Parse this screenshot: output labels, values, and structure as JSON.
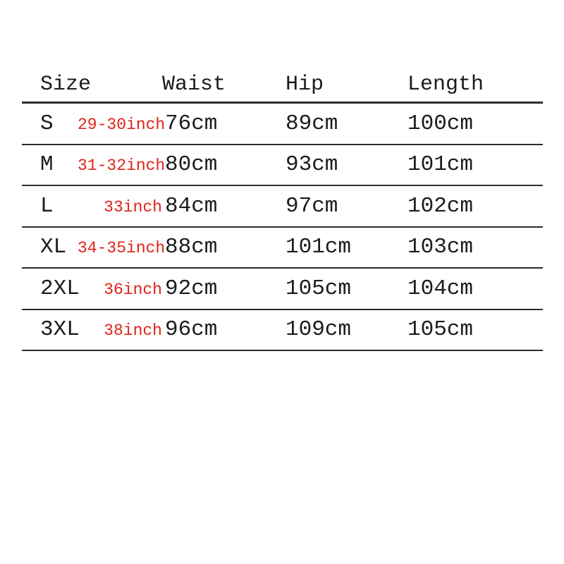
{
  "colors": {
    "accent_red": "#df2318",
    "text": "#1c1c1c",
    "rule": "#2d2d2d",
    "background": "#ffffff"
  },
  "chart_data": {
    "type": "table",
    "title": "",
    "columns": [
      "Size",
      "Waist",
      "Hip",
      "Length"
    ],
    "waist_units": [
      "inch",
      "cm"
    ],
    "rows": [
      {
        "size": "S",
        "waist_inch": "29-30inch",
        "waist_cm": "76cm",
        "hip": "89cm",
        "length": "100cm"
      },
      {
        "size": "M",
        "waist_inch": "31-32inch",
        "waist_cm": "80cm",
        "hip": "93cm",
        "length": "101cm"
      },
      {
        "size": "L",
        "waist_inch": "33inch",
        "waist_cm": "84cm",
        "hip": "97cm",
        "length": "102cm"
      },
      {
        "size": "XL",
        "waist_inch": "34-35inch",
        "waist_cm": "88cm",
        "hip": "101cm",
        "length": "103cm"
      },
      {
        "size": "2XL",
        "waist_inch": "36inch",
        "waist_cm": "92cm",
        "hip": "105cm",
        "length": "104cm"
      },
      {
        "size": "3XL",
        "waist_inch": "38inch",
        "waist_cm": "96cm",
        "hip": "109cm",
        "length": "105cm"
      }
    ]
  }
}
